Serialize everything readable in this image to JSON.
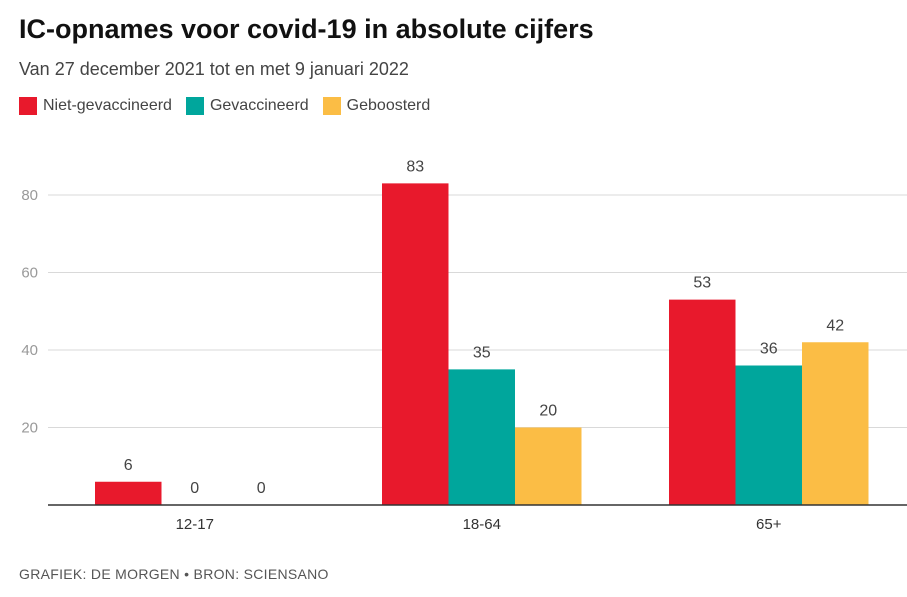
{
  "title": "IC-opnames voor covid-19 in absolute cijfers",
  "subtitle": "Van 27 december 2021 tot en met 9 januari 2022",
  "footer": "GRAFIEK: DE MORGEN • BRON: SCIENSANO",
  "chart_data": {
    "type": "bar",
    "categories": [
      "12-17",
      "18-64",
      "65+"
    ],
    "series": [
      {
        "name": "Niet-gevaccineerd",
        "color": "#e8192c",
        "values": [
          6,
          83,
          53
        ]
      },
      {
        "name": "Gevaccineerd",
        "color": "#00a69c",
        "values": [
          0,
          35,
          36
        ]
      },
      {
        "name": "Geboosterd",
        "color": "#fbbd45",
        "values": [
          0,
          20,
          42
        ]
      }
    ],
    "yticks": [
      20,
      40,
      60,
      80
    ],
    "ylim": [
      0,
      90
    ],
    "grid": true,
    "legend": "top-left",
    "data_labels": true
  }
}
